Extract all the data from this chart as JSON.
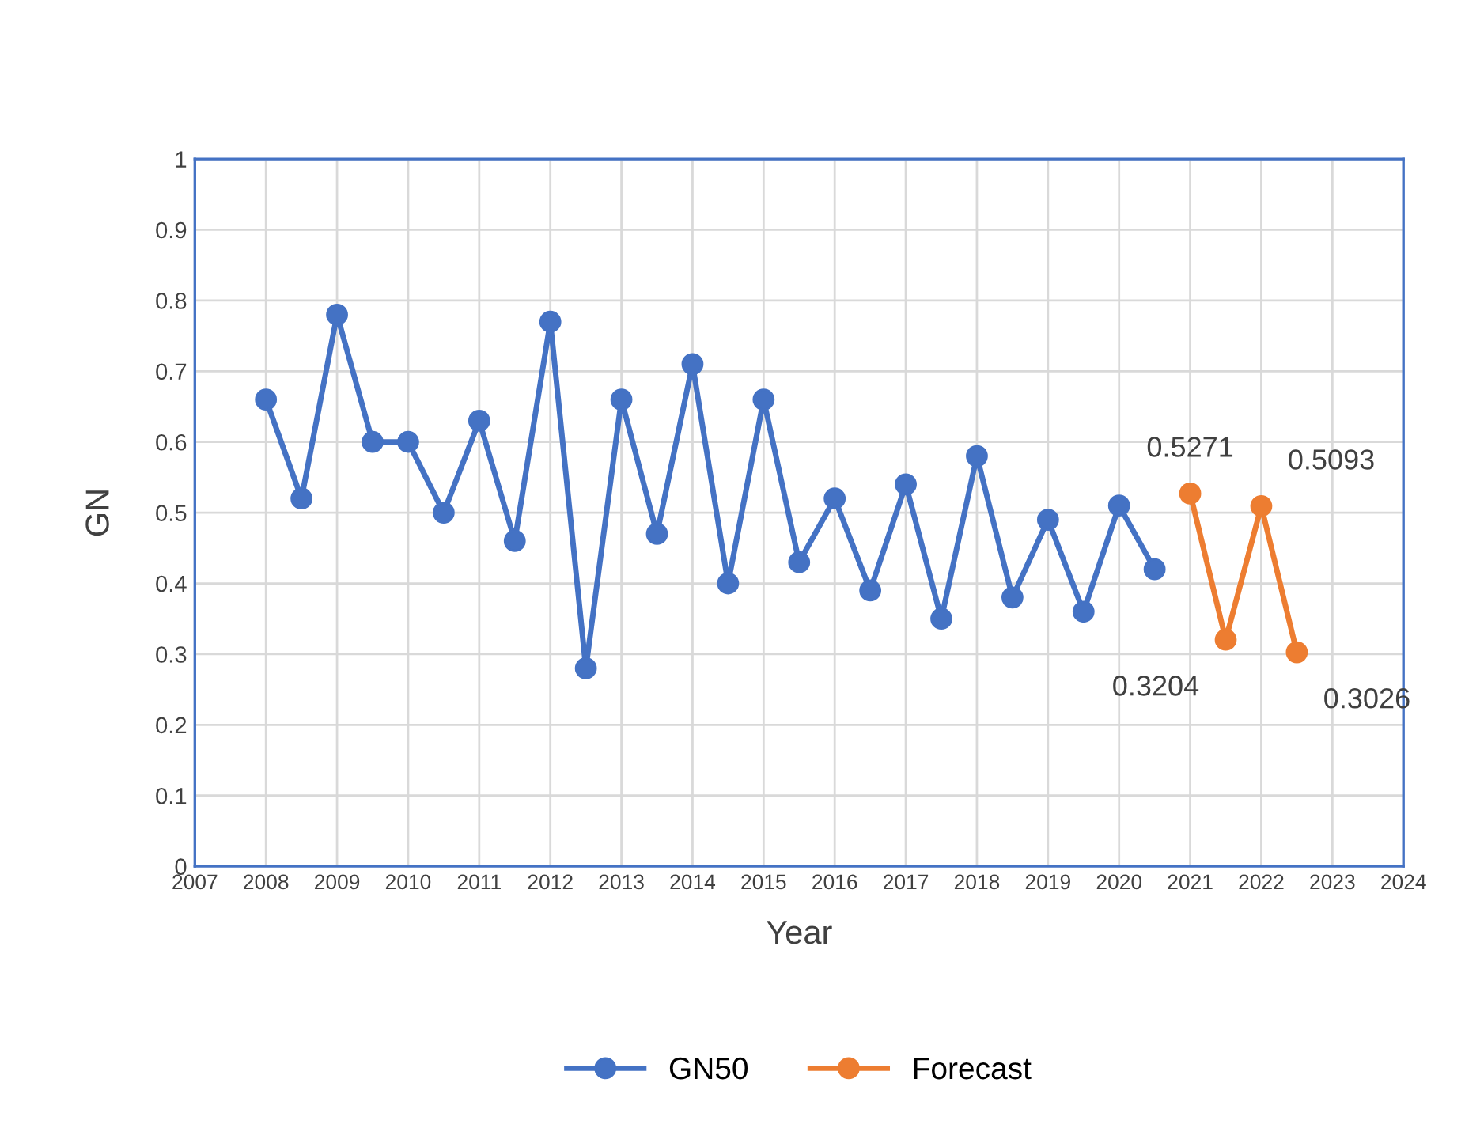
{
  "chart_data": {
    "type": "line",
    "xlabel": "Year",
    "ylabel": "GN",
    "xlim": [
      2007,
      2024
    ],
    "xticks": [
      2007,
      2008,
      2009,
      2010,
      2011,
      2012,
      2013,
      2014,
      2015,
      2016,
      2017,
      2018,
      2019,
      2020,
      2021,
      2022,
      2023,
      2024
    ],
    "ylim": [
      0,
      1
    ],
    "yticks": [
      0,
      0.1,
      0.2,
      0.3,
      0.4,
      0.5,
      0.6,
      0.7,
      0.8,
      0.9,
      1
    ],
    "grid": true,
    "legend": "bottom",
    "marker": "circle",
    "line_style": "solid",
    "series": [
      {
        "name": "GN50",
        "color": "#4472c4",
        "x": [
          2008,
          2008.5,
          2009,
          2009.5,
          2010,
          2010.5,
          2011,
          2011.5,
          2012,
          2012.5,
          2013,
          2013.5,
          2014,
          2014.5,
          2015,
          2015.5,
          2016,
          2016.5,
          2017,
          2017.5,
          2018,
          2018.5,
          2019,
          2019.5,
          2020,
          2020.5
        ],
        "values": [
          0.66,
          0.52,
          0.78,
          0.6,
          0.6,
          0.5,
          0.63,
          0.46,
          0.77,
          0.28,
          0.66,
          0.47,
          0.71,
          0.4,
          0.66,
          0.43,
          0.52,
          0.39,
          0.54,
          0.35,
          0.58,
          0.38,
          0.49,
          0.36,
          0.51,
          0.42
        ]
      },
      {
        "name": "Forecast",
        "color": "#ed7d31",
        "x": [
          2021,
          2021.5,
          2022,
          2022.5
        ],
        "values": [
          0.5271,
          0.3204,
          0.5093,
          0.3026
        ],
        "value_labels": [
          "0.5271",
          "0.3204",
          "0.5093",
          "0.3026"
        ]
      }
    ]
  }
}
